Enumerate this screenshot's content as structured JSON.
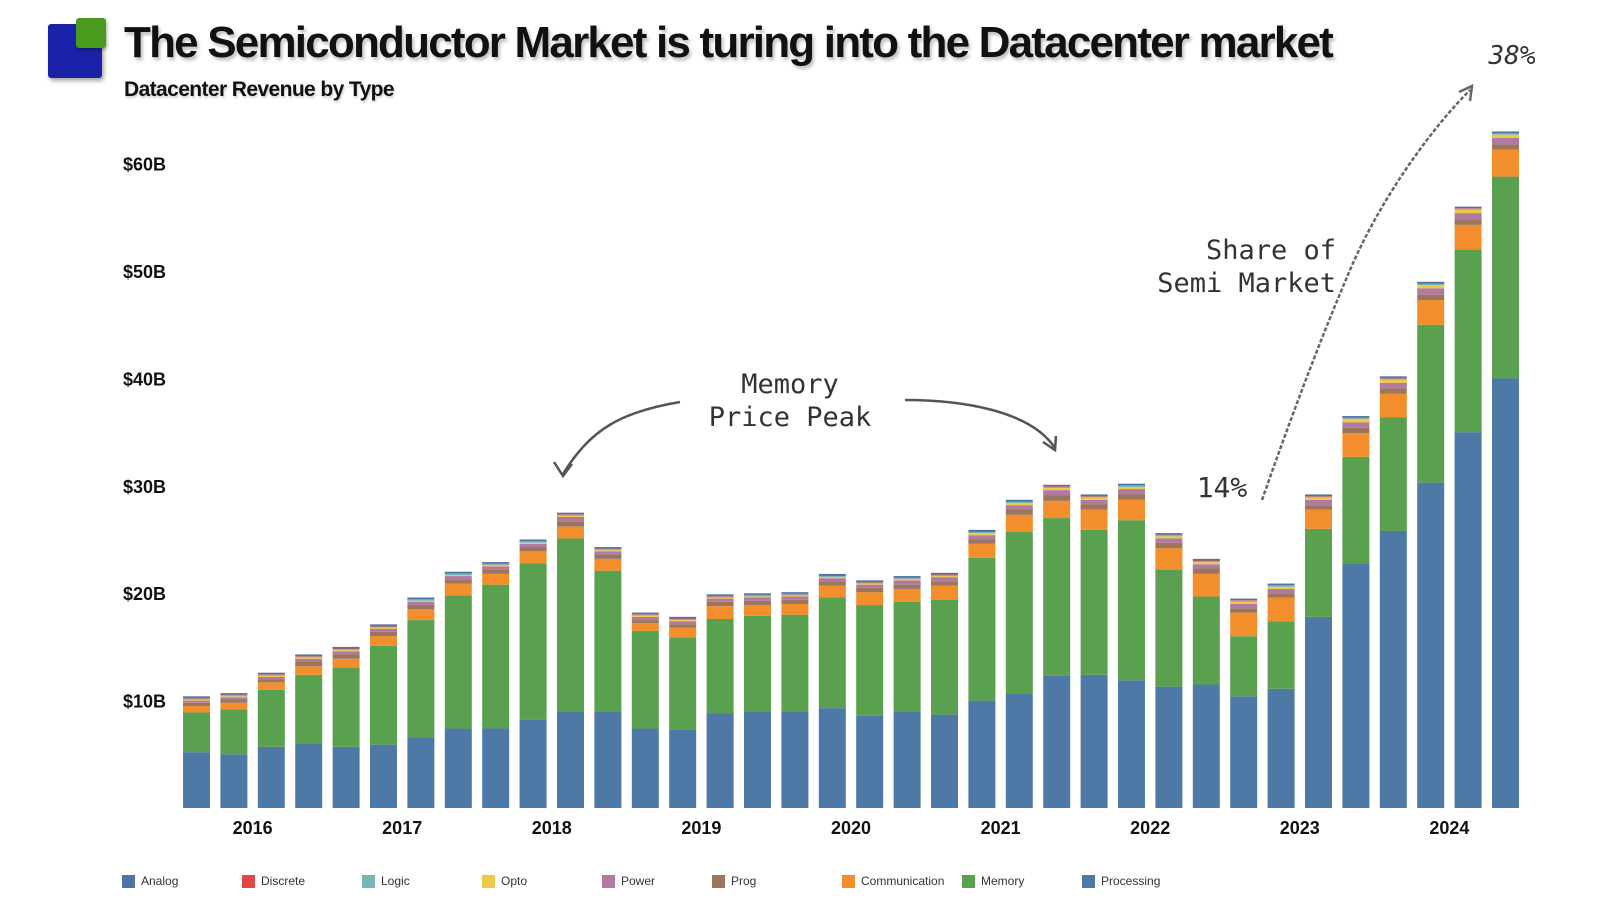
{
  "title": "The Semiconductor Market is turing into the Datacenter market",
  "subtitle": "Datacenter Revenue by Type",
  "annotations": {
    "memory_peak": [
      "Memory",
      "Price Peak"
    ],
    "share": [
      "Share of",
      "Semi Market"
    ],
    "share_start": "14%",
    "share_end": "38%"
  },
  "colors": {
    "Analog": "#4e73a6",
    "Discrete": "#e04848",
    "Logic": "#76b7b2",
    "Opto": "#edc948",
    "Power": "#b07aa1",
    "Prog": "#9c755f",
    "Communication": "#f28e2b",
    "Memory": "#59a14f",
    "Processing": "#4e79a7"
  },
  "legend": [
    "Analog",
    "Discrete",
    "Logic",
    "Opto",
    "Power",
    "Prog",
    "Communication",
    "Memory",
    "Processing"
  ],
  "chart_data": {
    "type": "bar",
    "stacked": true,
    "title": "The Semiconductor Market is turing into the Datacenter market",
    "subtitle": "Datacenter Revenue by Type",
    "y_unit": "$B",
    "ylim": [
      0,
      65
    ],
    "yticks": [
      10,
      20,
      30,
      40,
      50,
      60
    ],
    "ytick_labels": [
      "$10B",
      "$20B",
      "$30B",
      "$40B",
      "$50B",
      "$60B"
    ],
    "year_labels": [
      "2016",
      "2017",
      "2018",
      "2019",
      "2020",
      "2021",
      "2022",
      "2023",
      "2024"
    ],
    "categories": [
      "2016Q1",
      "2016Q2",
      "2016Q3",
      "2016Q4",
      "2017Q1",
      "2017Q2",
      "2017Q3",
      "2017Q4",
      "2018Q1",
      "2018Q2",
      "2018Q3",
      "2018Q4",
      "2019Q1",
      "2019Q2",
      "2019Q3",
      "2019Q4",
      "2020Q1",
      "2020Q2",
      "2020Q3",
      "2020Q4",
      "2021Q1",
      "2021Q2",
      "2021Q3",
      "2021Q4",
      "2022Q1",
      "2022Q2",
      "2022Q3",
      "2022Q4",
      "2023Q1",
      "2023Q2",
      "2023Q3",
      "2023Q4",
      "2024Q1",
      "2024Q2",
      "2024Q3",
      "2024Q4"
    ],
    "series": [
      {
        "name": "Processing",
        "values": [
          5.2,
          5.0,
          5.7,
          6.0,
          5.7,
          5.9,
          6.6,
          7.4,
          7.4,
          8.2,
          9.0,
          9.0,
          7.4,
          7.3,
          8.8,
          9.0,
          9.0,
          9.3,
          8.6,
          9.0,
          8.7,
          10.0,
          10.7,
          12.3,
          12.4,
          11.9,
          11.3,
          11.5,
          10.4,
          11.1,
          17.8,
          22.8,
          25.8,
          30.3,
          35.0,
          40.0
        ]
      },
      {
        "name": "Memory",
        "values": [
          3.7,
          4.2,
          5.3,
          6.4,
          7.4,
          9.2,
          10.9,
          12.4,
          13.4,
          14.6,
          16.1,
          13.1,
          9.1,
          8.6,
          8.8,
          8.9,
          9.0,
          10.3,
          10.3,
          10.2,
          10.7,
          13.3,
          15.0,
          14.7,
          13.5,
          14.9,
          10.9,
          8.2,
          5.6,
          6.3,
          8.2,
          9.9,
          10.6,
          14.7,
          17.0,
          18.8
        ]
      },
      {
        "name": "Communication",
        "values": [
          0.6,
          0.6,
          0.7,
          0.8,
          0.8,
          0.9,
          1.0,
          1.1,
          1.0,
          1.1,
          1.1,
          1.1,
          0.7,
          0.9,
          1.2,
          1.0,
          1.0,
          1.1,
          1.2,
          1.2,
          1.3,
          1.3,
          1.6,
          1.6,
          1.9,
          1.9,
          2.0,
          2.1,
          2.2,
          2.2,
          1.8,
          2.2,
          2.2,
          2.3,
          2.3,
          2.5
        ]
      },
      {
        "name": "Prog",
        "values": [
          0.3,
          0.3,
          0.3,
          0.4,
          0.4,
          0.4,
          0.4,
          0.4,
          0.4,
          0.4,
          0.5,
          0.4,
          0.3,
          0.3,
          0.4,
          0.4,
          0.4,
          0.4,
          0.4,
          0.4,
          0.4,
          0.4,
          0.5,
          0.5,
          0.5,
          0.5,
          0.5,
          0.5,
          0.4,
          0.4,
          0.4,
          0.5,
          0.5,
          0.5,
          0.5,
          0.5
        ]
      },
      {
        "name": "Power",
        "values": [
          0.2,
          0.2,
          0.2,
          0.3,
          0.3,
          0.3,
          0.3,
          0.3,
          0.3,
          0.3,
          0.4,
          0.3,
          0.3,
          0.3,
          0.3,
          0.3,
          0.3,
          0.3,
          0.3,
          0.4,
          0.4,
          0.4,
          0.4,
          0.5,
          0.4,
          0.5,
          0.4,
          0.4,
          0.4,
          0.4,
          0.5,
          0.5,
          0.5,
          0.6,
          0.6,
          0.6
        ]
      },
      {
        "name": "Opto",
        "values": [
          0.1,
          0.1,
          0.1,
          0.1,
          0.1,
          0.1,
          0.1,
          0.1,
          0.1,
          0.1,
          0.1,
          0.1,
          0.1,
          0.1,
          0.1,
          0.1,
          0.1,
          0.1,
          0.1,
          0.1,
          0.1,
          0.2,
          0.2,
          0.2,
          0.2,
          0.2,
          0.2,
          0.2,
          0.2,
          0.2,
          0.2,
          0.3,
          0.3,
          0.3,
          0.3,
          0.3
        ]
      },
      {
        "name": "Logic",
        "values": [
          0.1,
          0.1,
          0.1,
          0.1,
          0.1,
          0.1,
          0.1,
          0.1,
          0.1,
          0.1,
          0.1,
          0.1,
          0.1,
          0.1,
          0.1,
          0.1,
          0.1,
          0.1,
          0.1,
          0.1,
          0.1,
          0.1,
          0.1,
          0.1,
          0.1,
          0.1,
          0.1,
          0.1,
          0.1,
          0.1,
          0.1,
          0.1,
          0.1,
          0.1,
          0.1,
          0.1
        ]
      },
      {
        "name": "Discrete",
        "values": [
          0.05,
          0.05,
          0.05,
          0.05,
          0.05,
          0.05,
          0.05,
          0.05,
          0.05,
          0.05,
          0.05,
          0.05,
          0.05,
          0.05,
          0.05,
          0.05,
          0.05,
          0.05,
          0.05,
          0.05,
          0.05,
          0.05,
          0.05,
          0.05,
          0.05,
          0.05,
          0.05,
          0.05,
          0.05,
          0.05,
          0.05,
          0.05,
          0.05,
          0.05,
          0.05,
          0.05
        ]
      },
      {
        "name": "Analog",
        "values": [
          0.15,
          0.15,
          0.15,
          0.15,
          0.15,
          0.15,
          0.15,
          0.15,
          0.15,
          0.15,
          0.15,
          0.15,
          0.15,
          0.15,
          0.15,
          0.15,
          0.15,
          0.15,
          0.15,
          0.15,
          0.15,
          0.15,
          0.15,
          0.15,
          0.15,
          0.15,
          0.15,
          0.15,
          0.15,
          0.15,
          0.15,
          0.15,
          0.15,
          0.15,
          0.15,
          0.15
        ]
      }
    ]
  }
}
